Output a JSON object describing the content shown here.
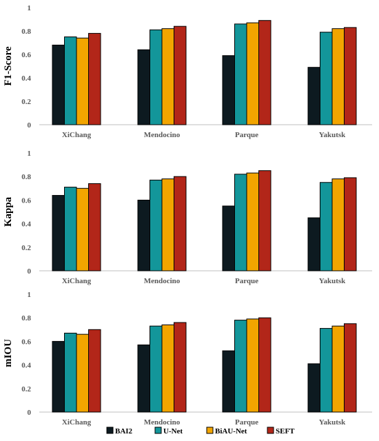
{
  "chart_data": [
    {
      "type": "bar",
      "ylabel": "F1-Score",
      "ylim": [
        0,
        1
      ],
      "yticks": [
        "0",
        "0.2",
        "0.4",
        "0.6",
        "0.8",
        "1"
      ],
      "categories": [
        "XiChang",
        "Mendocino",
        "Parque",
        "Yakutsk"
      ],
      "series": [
        {
          "name": "BAI2",
          "values": [
            0.68,
            0.64,
            0.59,
            0.49
          ]
        },
        {
          "name": "U-Net",
          "values": [
            0.75,
            0.81,
            0.86,
            0.79
          ]
        },
        {
          "name": "BiAU-Net",
          "values": [
            0.74,
            0.82,
            0.87,
            0.82
          ]
        },
        {
          "name": "SEFT",
          "values": [
            0.78,
            0.84,
            0.89,
            0.83
          ]
        }
      ],
      "grid": false
    },
    {
      "type": "bar",
      "ylabel": "Kappa",
      "ylim": [
        0,
        1
      ],
      "yticks": [
        "0",
        "0.2",
        "0.4",
        "0.6",
        "0.8",
        "1"
      ],
      "categories": [
        "XiChang",
        "Mendocino",
        "Parque",
        "Yakutsk"
      ],
      "series": [
        {
          "name": "BAI2",
          "values": [
            0.64,
            0.6,
            0.55,
            0.45
          ]
        },
        {
          "name": "U-Net",
          "values": [
            0.71,
            0.77,
            0.82,
            0.75
          ]
        },
        {
          "name": "BiAU-Net",
          "values": [
            0.7,
            0.78,
            0.83,
            0.78
          ]
        },
        {
          "name": "SEFT",
          "values": [
            0.74,
            0.8,
            0.85,
            0.79
          ]
        }
      ],
      "grid": false
    },
    {
      "type": "bar",
      "ylabel": "mIOU",
      "ylim": [
        0,
        1
      ],
      "yticks": [
        "0",
        "0.2",
        "0.4",
        "0.6",
        "0.8",
        "1"
      ],
      "categories": [
        "XiChang",
        "Mendocino",
        "Parque",
        "Yakutsk"
      ],
      "series": [
        {
          "name": "BAI2",
          "values": [
            0.6,
            0.57,
            0.52,
            0.41
          ]
        },
        {
          "name": "U-Net",
          "values": [
            0.67,
            0.73,
            0.78,
            0.71
          ]
        },
        {
          "name": "BiAU-Net",
          "values": [
            0.66,
            0.74,
            0.79,
            0.73
          ]
        },
        {
          "name": "SEFT",
          "values": [
            0.7,
            0.76,
            0.8,
            0.75
          ]
        }
      ],
      "grid": false
    }
  ],
  "legend": {
    "placement": "bottom",
    "items": [
      "BAI2",
      "U-Net",
      "BiAU-Net",
      "SEFT"
    ]
  },
  "colors": {
    "BAI2": "#0d1a20",
    "U-Net": "#13969a",
    "BiAU-Net": "#f2a500",
    "SEFT": "#b22619",
    "bar_stroke": "#000000",
    "axis": "#bfbfbf"
  }
}
